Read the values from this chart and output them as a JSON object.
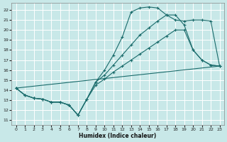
{
  "xlabel": "Humidex (Indice chaleur)",
  "bg_color": "#c8e8e8",
  "grid_color": "#b0d0d0",
  "line_color": "#1a6b6b",
  "xlim": [
    -0.5,
    23.5
  ],
  "ylim": [
    10.5,
    22.7
  ],
  "xticks": [
    0,
    1,
    2,
    3,
    4,
    5,
    6,
    7,
    8,
    9,
    10,
    11,
    12,
    13,
    14,
    15,
    16,
    17,
    18,
    19,
    20,
    21,
    22,
    23
  ],
  "yticks": [
    11,
    12,
    13,
    14,
    15,
    16,
    17,
    18,
    19,
    20,
    21,
    22
  ],
  "line1_x": [
    0,
    1,
    2,
    3,
    4,
    5,
    6,
    7,
    8,
    9,
    10,
    11,
    12,
    13,
    14,
    15,
    16,
    17,
    18,
    19,
    20,
    21,
    22,
    23
  ],
  "line1_y": [
    14.2,
    13.5,
    13.2,
    13.1,
    12.8,
    12.8,
    12.5,
    11.5,
    13.1,
    14.8,
    16.0,
    17.5,
    19.3,
    21.8,
    22.2,
    22.3,
    22.2,
    21.5,
    21.0,
    20.9,
    21.0,
    21.0,
    20.9,
    16.4
  ],
  "line2_x": [
    0,
    1,
    2,
    3,
    4,
    5,
    6,
    7,
    8,
    9,
    10,
    11,
    12,
    13,
    14,
    15,
    16,
    17,
    18,
    19,
    20,
    21,
    22,
    23
  ],
  "line2_y": [
    14.2,
    13.5,
    13.2,
    13.1,
    12.8,
    12.8,
    12.5,
    11.5,
    13.1,
    14.8,
    15.5,
    16.5,
    17.5,
    18.5,
    19.5,
    20.2,
    20.9,
    21.5,
    21.5,
    20.5,
    18.0,
    17.0,
    16.5,
    16.4
  ],
  "line3_x": [
    0,
    1,
    2,
    3,
    4,
    5,
    6,
    7,
    8,
    9,
    10,
    11,
    12,
    13,
    14,
    15,
    16,
    17,
    18,
    19,
    20,
    21,
    22,
    23
  ],
  "line3_y": [
    14.2,
    13.5,
    13.2,
    13.1,
    12.8,
    12.8,
    12.5,
    11.5,
    13.1,
    14.5,
    15.1,
    15.8,
    16.4,
    17.0,
    17.6,
    18.2,
    18.8,
    19.4,
    20.0,
    20.0,
    18.0,
    17.0,
    16.5,
    16.4
  ],
  "line4_x": [
    0,
    23
  ],
  "line4_y": [
    14.2,
    16.4
  ]
}
